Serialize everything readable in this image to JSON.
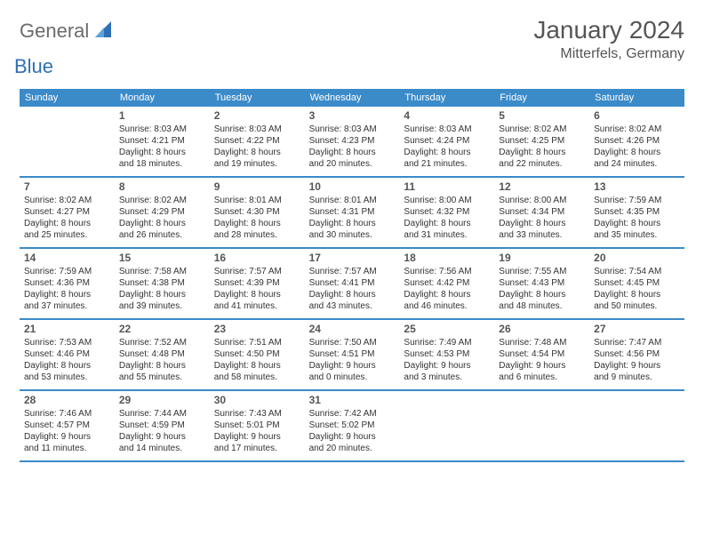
{
  "logo": {
    "text_general": "General",
    "text_blue": "Blue",
    "accent_color": "#2f6fb5"
  },
  "header": {
    "month_title": "January 2024",
    "location": "Mitterfels, Germany"
  },
  "colors": {
    "header_bar": "#3b8bc9",
    "text_body": "#333333",
    "text_muted": "#555555",
    "background": "#ffffff"
  },
  "weekdays": [
    "Sunday",
    "Monday",
    "Tuesday",
    "Wednesday",
    "Thursday",
    "Friday",
    "Saturday"
  ],
  "weeks": [
    [
      null,
      {
        "n": "1",
        "sr": "Sunrise: 8:03 AM",
        "ss": "Sunset: 4:21 PM",
        "d1": "Daylight: 8 hours",
        "d2": "and 18 minutes."
      },
      {
        "n": "2",
        "sr": "Sunrise: 8:03 AM",
        "ss": "Sunset: 4:22 PM",
        "d1": "Daylight: 8 hours",
        "d2": "and 19 minutes."
      },
      {
        "n": "3",
        "sr": "Sunrise: 8:03 AM",
        "ss": "Sunset: 4:23 PM",
        "d1": "Daylight: 8 hours",
        "d2": "and 20 minutes."
      },
      {
        "n": "4",
        "sr": "Sunrise: 8:03 AM",
        "ss": "Sunset: 4:24 PM",
        "d1": "Daylight: 8 hours",
        "d2": "and 21 minutes."
      },
      {
        "n": "5",
        "sr": "Sunrise: 8:02 AM",
        "ss": "Sunset: 4:25 PM",
        "d1": "Daylight: 8 hours",
        "d2": "and 22 minutes."
      },
      {
        "n": "6",
        "sr": "Sunrise: 8:02 AM",
        "ss": "Sunset: 4:26 PM",
        "d1": "Daylight: 8 hours",
        "d2": "and 24 minutes."
      }
    ],
    [
      {
        "n": "7",
        "sr": "Sunrise: 8:02 AM",
        "ss": "Sunset: 4:27 PM",
        "d1": "Daylight: 8 hours",
        "d2": "and 25 minutes."
      },
      {
        "n": "8",
        "sr": "Sunrise: 8:02 AM",
        "ss": "Sunset: 4:29 PM",
        "d1": "Daylight: 8 hours",
        "d2": "and 26 minutes."
      },
      {
        "n": "9",
        "sr": "Sunrise: 8:01 AM",
        "ss": "Sunset: 4:30 PM",
        "d1": "Daylight: 8 hours",
        "d2": "and 28 minutes."
      },
      {
        "n": "10",
        "sr": "Sunrise: 8:01 AM",
        "ss": "Sunset: 4:31 PM",
        "d1": "Daylight: 8 hours",
        "d2": "and 30 minutes."
      },
      {
        "n": "11",
        "sr": "Sunrise: 8:00 AM",
        "ss": "Sunset: 4:32 PM",
        "d1": "Daylight: 8 hours",
        "d2": "and 31 minutes."
      },
      {
        "n": "12",
        "sr": "Sunrise: 8:00 AM",
        "ss": "Sunset: 4:34 PM",
        "d1": "Daylight: 8 hours",
        "d2": "and 33 minutes."
      },
      {
        "n": "13",
        "sr": "Sunrise: 7:59 AM",
        "ss": "Sunset: 4:35 PM",
        "d1": "Daylight: 8 hours",
        "d2": "and 35 minutes."
      }
    ],
    [
      {
        "n": "14",
        "sr": "Sunrise: 7:59 AM",
        "ss": "Sunset: 4:36 PM",
        "d1": "Daylight: 8 hours",
        "d2": "and 37 minutes."
      },
      {
        "n": "15",
        "sr": "Sunrise: 7:58 AM",
        "ss": "Sunset: 4:38 PM",
        "d1": "Daylight: 8 hours",
        "d2": "and 39 minutes."
      },
      {
        "n": "16",
        "sr": "Sunrise: 7:57 AM",
        "ss": "Sunset: 4:39 PM",
        "d1": "Daylight: 8 hours",
        "d2": "and 41 minutes."
      },
      {
        "n": "17",
        "sr": "Sunrise: 7:57 AM",
        "ss": "Sunset: 4:41 PM",
        "d1": "Daylight: 8 hours",
        "d2": "and 43 minutes."
      },
      {
        "n": "18",
        "sr": "Sunrise: 7:56 AM",
        "ss": "Sunset: 4:42 PM",
        "d1": "Daylight: 8 hours",
        "d2": "and 46 minutes."
      },
      {
        "n": "19",
        "sr": "Sunrise: 7:55 AM",
        "ss": "Sunset: 4:43 PM",
        "d1": "Daylight: 8 hours",
        "d2": "and 48 minutes."
      },
      {
        "n": "20",
        "sr": "Sunrise: 7:54 AM",
        "ss": "Sunset: 4:45 PM",
        "d1": "Daylight: 8 hours",
        "d2": "and 50 minutes."
      }
    ],
    [
      {
        "n": "21",
        "sr": "Sunrise: 7:53 AM",
        "ss": "Sunset: 4:46 PM",
        "d1": "Daylight: 8 hours",
        "d2": "and 53 minutes."
      },
      {
        "n": "22",
        "sr": "Sunrise: 7:52 AM",
        "ss": "Sunset: 4:48 PM",
        "d1": "Daylight: 8 hours",
        "d2": "and 55 minutes."
      },
      {
        "n": "23",
        "sr": "Sunrise: 7:51 AM",
        "ss": "Sunset: 4:50 PM",
        "d1": "Daylight: 8 hours",
        "d2": "and 58 minutes."
      },
      {
        "n": "24",
        "sr": "Sunrise: 7:50 AM",
        "ss": "Sunset: 4:51 PM",
        "d1": "Daylight: 9 hours",
        "d2": "and 0 minutes."
      },
      {
        "n": "25",
        "sr": "Sunrise: 7:49 AM",
        "ss": "Sunset: 4:53 PM",
        "d1": "Daylight: 9 hours",
        "d2": "and 3 minutes."
      },
      {
        "n": "26",
        "sr": "Sunrise: 7:48 AM",
        "ss": "Sunset: 4:54 PM",
        "d1": "Daylight: 9 hours",
        "d2": "and 6 minutes."
      },
      {
        "n": "27",
        "sr": "Sunrise: 7:47 AM",
        "ss": "Sunset: 4:56 PM",
        "d1": "Daylight: 9 hours",
        "d2": "and 9 minutes."
      }
    ],
    [
      {
        "n": "28",
        "sr": "Sunrise: 7:46 AM",
        "ss": "Sunset: 4:57 PM",
        "d1": "Daylight: 9 hours",
        "d2": "and 11 minutes."
      },
      {
        "n": "29",
        "sr": "Sunrise: 7:44 AM",
        "ss": "Sunset: 4:59 PM",
        "d1": "Daylight: 9 hours",
        "d2": "and 14 minutes."
      },
      {
        "n": "30",
        "sr": "Sunrise: 7:43 AM",
        "ss": "Sunset: 5:01 PM",
        "d1": "Daylight: 9 hours",
        "d2": "and 17 minutes."
      },
      {
        "n": "31",
        "sr": "Sunrise: 7:42 AM",
        "ss": "Sunset: 5:02 PM",
        "d1": "Daylight: 9 hours",
        "d2": "and 20 minutes."
      },
      null,
      null,
      null
    ]
  ]
}
